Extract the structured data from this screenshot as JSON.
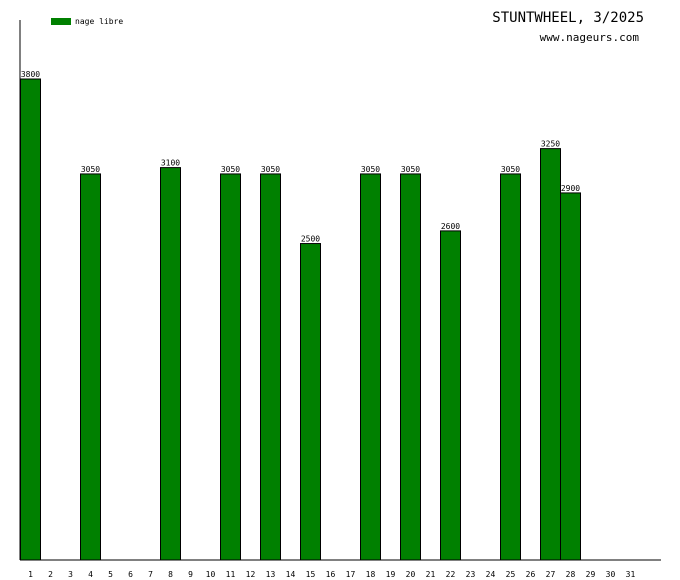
{
  "title": "STUNTWHEEL, 3/2025",
  "subtitle": "www.nageurs.com",
  "legend": {
    "label": "nage libre"
  },
  "colors": {
    "bar": "#008000",
    "bar_stroke": "#000000",
    "axis": "#000000"
  },
  "chart_data": {
    "type": "bar",
    "categories": [
      "1",
      "2",
      "3",
      "4",
      "5",
      "6",
      "7",
      "8",
      "9",
      "10",
      "11",
      "12",
      "13",
      "14",
      "15",
      "16",
      "17",
      "18",
      "19",
      "20",
      "21",
      "22",
      "23",
      "24",
      "25",
      "26",
      "27",
      "28",
      "29",
      "30",
      "31"
    ],
    "series": [
      {
        "name": "nage libre",
        "values": [
          3800,
          null,
          null,
          3050,
          null,
          null,
          null,
          3100,
          null,
          null,
          3050,
          null,
          3050,
          null,
          2500,
          null,
          null,
          3050,
          null,
          3050,
          null,
          2600,
          null,
          null,
          3050,
          null,
          3250,
          2900,
          null,
          null,
          null
        ],
        "labels": [
          "3800",
          "",
          "",
          "3050",
          "",
          "",
          "",
          "3100",
          "",
          "",
          "3050",
          "",
          "3050",
          "",
          "2500",
          "",
          "",
          "3050",
          "",
          "3050",
          "",
          "2600",
          "",
          "",
          "3050",
          "",
          "3250",
          "2900",
          "",
          "",
          ""
        ]
      }
    ],
    "ylim": [
      0,
      3800
    ],
    "grid": false,
    "legend_position": "top-left"
  }
}
